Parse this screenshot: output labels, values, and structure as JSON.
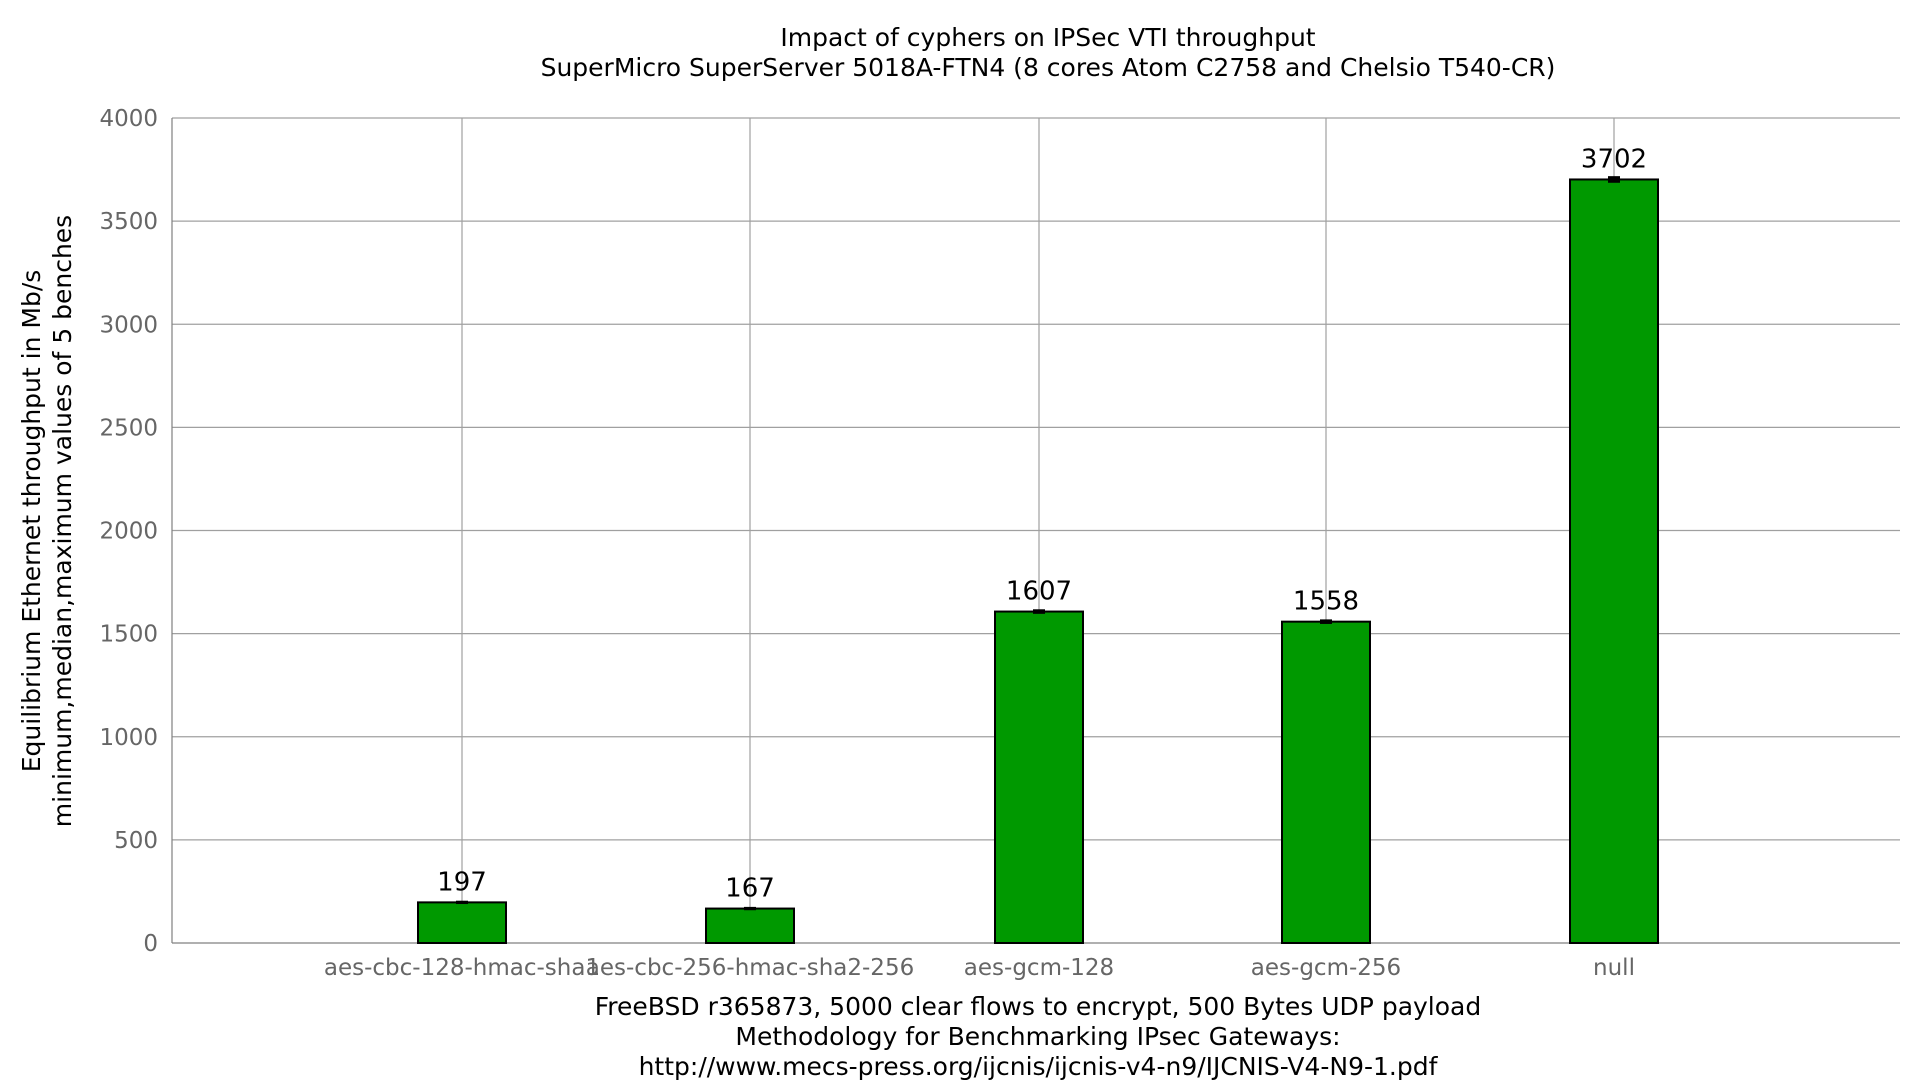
{
  "chart_data": {
    "type": "bar",
    "title": "Impact of cyphers on IPSec VTI throughput",
    "subtitle": "SuperMicro SuperServer 5018A-FTN4 (8 cores Atom C2758 and Chelsio T540-CR)",
    "ylabel": [
      "Equilibrium Ethernet throughput in Mb/s",
      "minimum,median,maximum values of 5 benches"
    ],
    "xlabel": [
      "FreeBSD r365873, 5000 clear flows to encrypt, 500 Bytes UDP payload",
      "Methodology for Benchmarking IPsec Gateways:",
      "http://www.mecs-press.org/ijcnis/ijcnis-v4-n9/IJCNIS-V4-N9-1.pdf"
    ],
    "categories": [
      "aes-cbc-128-hmac-sha1",
      "aes-cbc-256-hmac-sha2-256",
      "aes-gcm-128",
      "aes-gcm-256",
      "null"
    ],
    "values": [
      197,
      167,
      1607,
      1558,
      3702
    ],
    "min": [
      195,
      165,
      1602,
      1553,
      3692
    ],
    "max": [
      199,
      169,
      1612,
      1563,
      3712
    ],
    "data_labels": [
      "197",
      "167",
      "1607",
      "1558",
      "3702"
    ],
    "ylim": [
      0,
      4000
    ],
    "yticks": [
      0,
      500,
      1000,
      1500,
      2000,
      2500,
      3000,
      3500,
      4000
    ],
    "grid": true,
    "bar_color": "#009900"
  }
}
